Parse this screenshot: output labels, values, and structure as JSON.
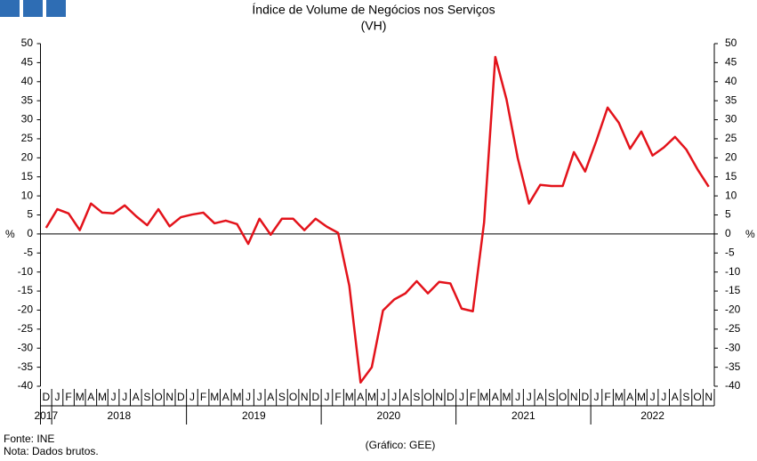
{
  "chart_data": {
    "type": "line",
    "title": "Índice de Volume de Negócios nos Serviços",
    "subtitle": "(VH)",
    "y_label": "%",
    "categories": [
      "D",
      "J",
      "F",
      "M",
      "A",
      "M",
      "J",
      "J",
      "A",
      "S",
      "O",
      "N",
      "D",
      "J",
      "F",
      "M",
      "A",
      "M",
      "J",
      "J",
      "A",
      "S",
      "O",
      "N",
      "D",
      "J",
      "F",
      "M",
      "A",
      "M",
      "J",
      "J",
      "A",
      "S",
      "O",
      "N",
      "D",
      "J",
      "F",
      "M",
      "A",
      "M",
      "J",
      "J",
      "A",
      "S",
      "O",
      "N",
      "D",
      "J",
      "F",
      "M",
      "A",
      "M",
      "J",
      "J",
      "A",
      "S",
      "O",
      "N"
    ],
    "years": [
      "2017",
      "2018",
      "2019",
      "2020",
      "2021",
      "2022"
    ],
    "series": [
      {
        "name": "VH",
        "color": "#e3131b",
        "values": [
          1.6,
          6.5,
          5.4,
          1,
          8,
          5.6,
          5.4,
          7.5,
          4.7,
          2.3,
          6.5,
          2,
          4.4,
          5.1,
          5.6,
          2.8,
          3.5,
          2.6,
          -2.6,
          4,
          -0.2,
          4,
          4,
          1,
          4,
          1.9,
          0.3,
          -13.6,
          -39,
          -35,
          -20.1,
          -17.2,
          -15.6,
          -12.4,
          -15.6,
          -12.6,
          -13,
          -19.6,
          -20.3,
          3,
          46.5,
          35.3,
          19.9,
          8,
          12.9,
          12.6,
          12.6,
          21.5,
          16.4,
          24.5,
          33.2,
          29.2,
          22.4,
          26.9,
          20.6,
          22.7,
          25.5,
          22.2,
          17,
          12.4
        ]
      }
    ],
    "ylim": [
      -40,
      50
    ],
    "yticks": [
      -40,
      -35,
      -30,
      -25,
      -20,
      -15,
      -10,
      -5,
      0,
      5,
      10,
      15,
      20,
      25,
      30,
      35,
      40,
      45,
      50
    ],
    "source": "Fonte: INE",
    "note": "Nota: Dados brutos.",
    "credit": "(Gráfico: GEE)"
  }
}
